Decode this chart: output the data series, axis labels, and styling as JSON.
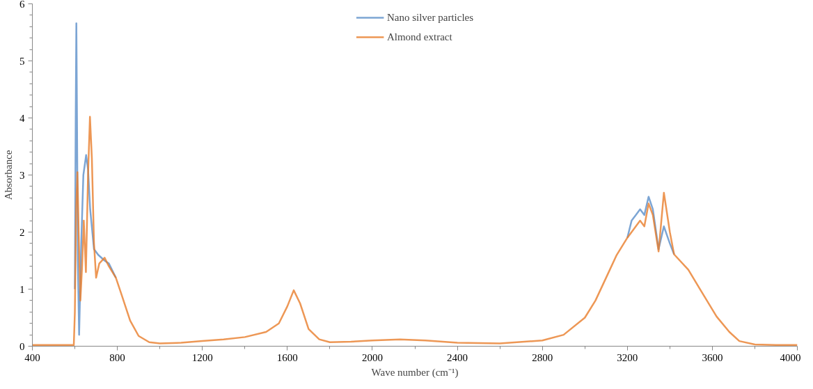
{
  "chart_data": {
    "type": "line",
    "xlabel": "Wave number (cm⁻¹)",
    "ylabel": "Absorbance",
    "xlim": [
      400,
      4000
    ],
    "ylim": [
      0,
      6
    ],
    "xticks": [
      400,
      800,
      1200,
      1600,
      2000,
      2400,
      2800,
      3200,
      3600,
      4000
    ],
    "yticks": [
      0,
      1,
      2,
      3,
      4,
      5,
      6
    ],
    "grid": false,
    "legend": "top",
    "marker": "none",
    "line_style": "solid",
    "series": [
      {
        "name": "Nano silver particles",
        "color": "#5b8fc9",
        "x": [
          600,
          604,
          607,
          610,
          614,
          620,
          630,
          640,
          653,
          662,
          672,
          690,
          710,
          740,
          760,
          793,
          820,
          860,
          900,
          950,
          1000,
          1100,
          1200,
          1300,
          1400,
          1500,
          1560,
          1600,
          1630,
          1660,
          1700,
          1750,
          1800,
          1900,
          2000,
          2130,
          2250,
          2400,
          2600,
          2800,
          2900,
          3000,
          3050,
          3100,
          3150,
          3200,
          3220,
          3240,
          3260,
          3280,
          3300,
          3320,
          3347,
          3372,
          3400,
          3420
        ],
        "values": [
          1.0,
          4.0,
          5.66,
          4.0,
          1.5,
          0.2,
          1.8,
          3.0,
          3.35,
          3.1,
          2.4,
          1.7,
          1.6,
          1.5,
          1.45,
          1.2,
          null,
          null,
          null,
          null,
          null,
          null,
          null,
          null,
          null,
          null,
          null,
          null,
          null,
          null,
          null,
          null,
          null,
          null,
          null,
          null,
          null,
          null,
          null,
          null,
          null,
          null,
          null,
          null,
          null,
          1.9,
          2.2,
          2.3,
          2.4,
          2.3,
          2.62,
          2.4,
          1.7,
          2.1,
          1.8,
          1.61
        ]
      },
      {
        "name": "Almond extract",
        "color": "#e87d2b",
        "x": [
          400,
          595,
          600,
          606,
          612,
          618,
          626,
          634,
          642,
          652,
          662,
          671,
          680,
          690,
          700,
          715,
          740,
          760,
          793,
          820,
          860,
          900,
          950,
          1000,
          1100,
          1200,
          1300,
          1400,
          1500,
          1560,
          1600,
          1630,
          1660,
          1700,
          1750,
          1800,
          1900,
          2000,
          2130,
          2250,
          2400,
          2600,
          2800,
          2900,
          3000,
          3050,
          3100,
          3150,
          3200,
          3220,
          3240,
          3260,
          3280,
          3300,
          3320,
          3347,
          3372,
          3400,
          3420,
          3487,
          3550,
          3620,
          3680,
          3727,
          3800,
          3900,
          4000
        ],
        "values": [
          0.02,
          0.02,
          0.6,
          2.4,
          3.05,
          2.0,
          0.8,
          1.4,
          2.2,
          1.3,
          3.0,
          4.02,
          3.3,
          1.8,
          1.2,
          1.45,
          1.55,
          1.4,
          1.2,
          0.9,
          0.45,
          0.18,
          0.07,
          0.05,
          0.06,
          0.09,
          0.12,
          0.16,
          0.25,
          0.4,
          0.7,
          0.98,
          0.75,
          0.3,
          0.12,
          0.07,
          0.08,
          0.1,
          0.12,
          0.1,
          0.06,
          0.05,
          0.1,
          0.2,
          0.5,
          0.8,
          1.2,
          1.6,
          1.9,
          2.0,
          2.1,
          2.2,
          2.1,
          2.5,
          2.3,
          1.66,
          2.69,
          2.0,
          1.61,
          1.34,
          0.95,
          0.52,
          0.25,
          0.09,
          0.03,
          0.02,
          0.02
        ]
      }
    ]
  }
}
